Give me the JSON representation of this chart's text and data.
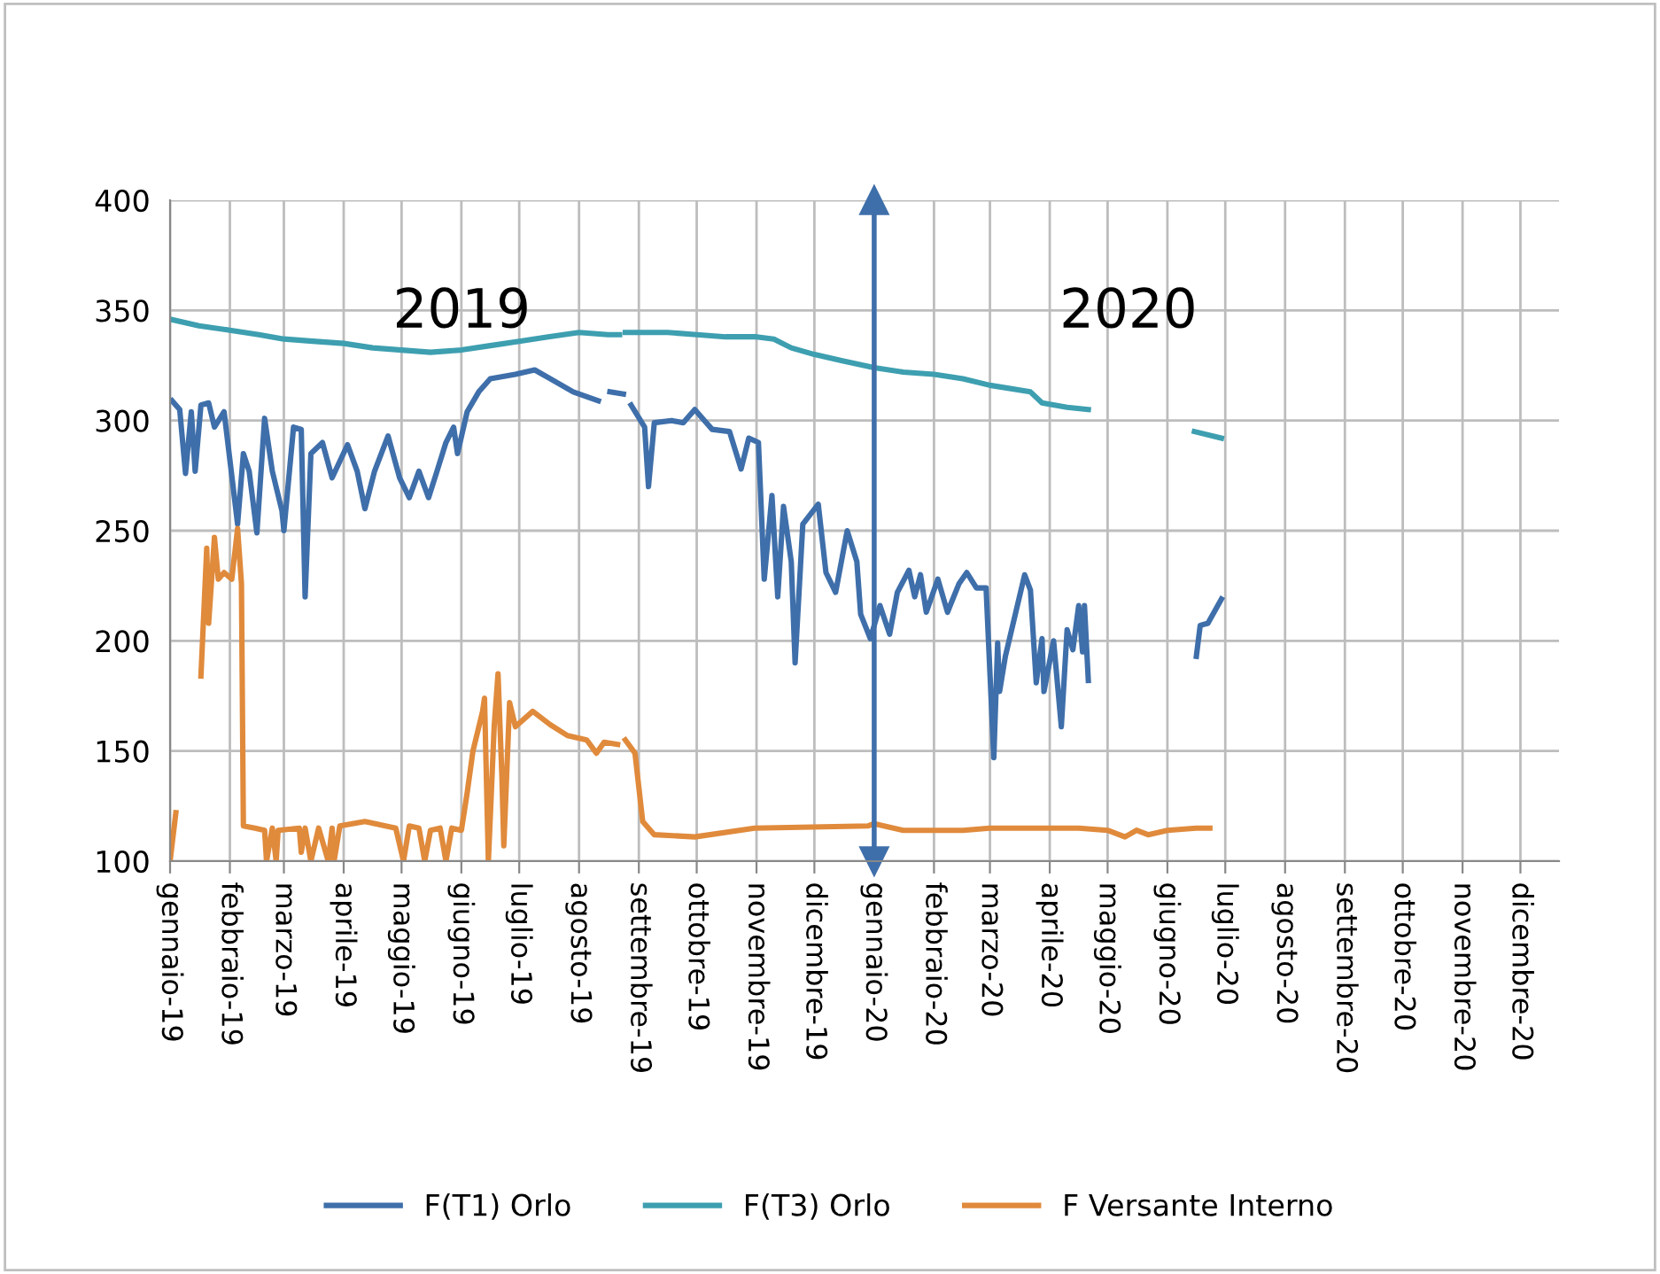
{
  "chart_data": {
    "type": "line",
    "xlim": [
      "2019-01-01",
      "2020-12-21"
    ],
    "xticks": [
      {
        "value": "2019-01-01",
        "label": "gennaio-19"
      },
      {
        "value": "2019-02-01",
        "label": "febbraio-19"
      },
      {
        "value": "2019-03-01",
        "label": "marzo-19"
      },
      {
        "value": "2019-04-01",
        "label": "aprile-19"
      },
      {
        "value": "2019-05-01",
        "label": "maggio-19"
      },
      {
        "value": "2019-06-01",
        "label": "giugno-19"
      },
      {
        "value": "2019-07-01",
        "label": "luglio-19"
      },
      {
        "value": "2019-08-01",
        "label": "agosto-19"
      },
      {
        "value": "2019-09-01",
        "label": "settembre-19"
      },
      {
        "value": "2019-10-01",
        "label": "ottobre-19"
      },
      {
        "value": "2019-11-01",
        "label": "novembre-19"
      },
      {
        "value": "2019-12-01",
        "label": "dicembre-19"
      },
      {
        "value": "2020-01-01",
        "label": "gennaio-20"
      },
      {
        "value": "2020-02-01",
        "label": "febbraio-20"
      },
      {
        "value": "2020-03-01",
        "label": "marzo-20"
      },
      {
        "value": "2020-04-01",
        "label": "aprile-20"
      },
      {
        "value": "2020-05-01",
        "label": "maggio-20"
      },
      {
        "value": "2020-06-01",
        "label": "giugno-20"
      },
      {
        "value": "2020-07-01",
        "label": "luglio-20"
      },
      {
        "value": "2020-08-01",
        "label": "agosto-20"
      },
      {
        "value": "2020-09-01",
        "label": "settembre-20"
      },
      {
        "value": "2020-10-01",
        "label": "ottobre-20"
      },
      {
        "value": "2020-11-01",
        "label": "novembre-20"
      },
      {
        "value": "2020-12-01",
        "label": "dicembre-20"
      }
    ],
    "ylim": [
      100,
      400
    ],
    "yticks": [
      100,
      150,
      200,
      250,
      300,
      350,
      400
    ],
    "grid": true,
    "legend": "bottom",
    "marker": "none",
    "line_style": "solid",
    "annotations": [
      "2019",
      "2020"
    ],
    "ref_lines": [
      {
        "axis": "x",
        "value": "2020-01-01",
        "label": null,
        "color": "#3f6faa"
      }
    ],
    "series": [
      {
        "name": "F(T1) Orlo",
        "color": "#3f6faa",
        "x": [
          "2019-01-02",
          "2019-01-06",
          "2019-01-09",
          "2019-01-12",
          "2019-01-14",
          "2019-01-17",
          "2019-01-21",
          "2019-01-24",
          "2019-01-29",
          "2019-02-05",
          "2019-02-08",
          "2019-02-11",
          "2019-02-15",
          "2019-02-19",
          "2019-02-23",
          "2019-02-28",
          "2019-03-01",
          "2019-03-06",
          "2019-03-10",
          "2019-03-12",
          "2019-03-15",
          "2019-03-21",
          "2019-03-26",
          "2019-04-03",
          "2019-04-08",
          "2019-04-12",
          "2019-04-17",
          "2019-04-24",
          "2019-04-30",
          "2019-05-05",
          "2019-05-10",
          "2019-05-15",
          "2019-05-19",
          "2019-05-24",
          "2019-05-28",
          "2019-05-30",
          "2019-06-04",
          "2019-06-10",
          "2019-06-16",
          "2019-06-29",
          "2019-07-09",
          "2019-07-17",
          "2019-07-29",
          "2019-08-11",
          "2019-08-14",
          "2019-08-17",
          "2019-08-24",
          "2019-08-26",
          "2019-08-28",
          "2019-09-04",
          "2019-09-06",
          "2019-09-09",
          "2019-09-18",
          "2019-09-24",
          "2019-09-30",
          "2019-10-05",
          "2019-10-09",
          "2019-10-18",
          "2019-10-24",
          "2019-10-28",
          "2019-11-02",
          "2019-11-05",
          "2019-11-09",
          "2019-11-12",
          "2019-11-15",
          "2019-11-19",
          "2019-11-21",
          "2019-11-25",
          "2019-12-03",
          "2019-12-07",
          "2019-12-12",
          "2019-12-18",
          "2019-12-23",
          "2019-12-25",
          "2019-12-30",
          "2020-01-04",
          "2020-01-09",
          "2020-01-13",
          "2020-01-19",
          "2020-01-22",
          "2020-01-25",
          "2020-01-28",
          "2020-02-03",
          "2020-02-08",
          "2020-02-14",
          "2020-02-18",
          "2020-02-23",
          "2020-02-28",
          "2020-03-03",
          "2020-03-05",
          "2020-03-06",
          "2020-03-09",
          "2020-03-19",
          "2020-03-22",
          "2020-03-25",
          "2020-03-28",
          "2020-03-29",
          "2020-04-03",
          "2020-04-07",
          "2020-04-10",
          "2020-04-13",
          "2020-04-16",
          "2020-04-18",
          "2020-04-19",
          "2020-04-21",
          "2020-05-16",
          "2020-06-16",
          "2020-06-18",
          "2020-06-22",
          "2020-06-29"
        ],
        "values": [
          309,
          305,
          276,
          304,
          277,
          307,
          308,
          297,
          304,
          253,
          285,
          277,
          249,
          301,
          277,
          259,
          250,
          297,
          296,
          220,
          285,
          290,
          274,
          289,
          277,
          260,
          277,
          293,
          274,
          265,
          277,
          265,
          276,
          290,
          297,
          285,
          304,
          313,
          319,
          321,
          323,
          319,
          313,
          309,
          null,
          313,
          312,
          null,
          307,
          297,
          270,
          299,
          300,
          299,
          305,
          300,
          296,
          295,
          278,
          292,
          290,
          228,
          266,
          220,
          261,
          236,
          190,
          253,
          262,
          231,
          222,
          250,
          236,
          212,
          201,
          216,
          203,
          222,
          232,
          220,
          230,
          213,
          228,
          213,
          226,
          231,
          224,
          224,
          147,
          199,
          177,
          193,
          230,
          223,
          181,
          201,
          177,
          200,
          161,
          205,
          196,
          216,
          195,
          216,
          182,
          null,
          193,
          207,
          208,
          219
        ]
      },
      {
        "name": "F(T3) Orlo",
        "color": "#3d9fb0",
        "x": [
          "2019-01-01",
          "2019-01-16",
          "2019-02-01",
          "2019-02-16",
          "2019-03-01",
          "2019-03-16",
          "2019-04-01",
          "2019-04-16",
          "2019-05-01",
          "2019-05-16",
          "2019-06-01",
          "2019-06-16",
          "2019-07-01",
          "2019-07-16",
          "2019-08-01",
          "2019-08-16",
          "2019-08-22",
          "2019-08-23",
          "2019-08-25",
          "2019-09-16",
          "2019-10-01",
          "2019-10-16",
          "2019-11-01",
          "2019-11-10",
          "2019-11-19",
          "2019-12-01",
          "2019-12-16",
          "2020-01-01",
          "2020-01-16",
          "2020-02-01",
          "2020-02-16",
          "2020-03-01",
          "2020-03-22",
          "2020-03-28",
          "2020-04-10",
          "2020-04-21",
          "2020-05-16",
          "2020-06-15",
          "2020-06-29"
        ],
        "values": [
          346,
          343,
          341,
          339,
          337,
          336,
          335,
          333,
          332,
          331,
          332,
          334,
          336,
          338,
          340,
          339,
          339,
          null,
          340,
          340,
          339,
          338,
          338,
          337,
          333,
          330,
          327,
          324,
          322,
          321,
          319,
          316,
          313,
          308,
          306,
          305,
          null,
          295,
          292
        ]
      },
      {
        "name": "F Versante Interno",
        "color": "#e08a3c",
        "x": [
          "2019-01-01",
          "2019-01-04",
          "2019-01-10",
          "2019-01-17",
          "2019-01-20",
          "2019-01-21",
          "2019-01-24",
          "2019-01-26",
          "2019-01-29",
          "2019-02-02",
          "2019-02-05",
          "2019-02-07",
          "2019-02-08",
          "2019-02-14",
          "2019-02-19",
          "2019-02-20",
          "2019-02-23",
          "2019-02-25",
          "2019-02-26",
          "2019-03-09",
          "2019-03-10",
          "2019-03-12",
          "2019-03-15",
          "2019-03-19",
          "2019-03-24",
          "2019-03-26",
          "2019-03-27",
          "2019-03-30",
          "2019-04-12",
          "2019-04-28",
          "2019-05-02",
          "2019-05-05",
          "2019-05-10",
          "2019-05-13",
          "2019-05-16",
          "2019-05-21",
          "2019-05-24",
          "2019-05-27",
          "2019-06-01",
          "2019-06-04",
          "2019-06-07",
          "2019-06-12",
          "2019-06-13",
          "2019-06-15",
          "2019-06-18",
          "2019-06-20",
          "2019-06-22",
          "2019-06-23",
          "2019-06-26",
          "2019-06-29",
          "2019-07-08",
          "2019-07-17",
          "2019-07-26",
          "2019-08-05",
          "2019-08-10",
          "2019-08-14",
          "2019-08-21",
          "2019-08-23",
          "2019-08-25",
          "2019-08-30",
          "2019-09-03",
          "2019-09-09",
          "2019-09-30",
          "2019-10-31",
          "2019-12-29",
          "2020-01-01",
          "2020-01-16",
          "2020-02-01",
          "2020-02-16",
          "2020-03-01",
          "2020-03-16",
          "2020-04-01",
          "2020-04-16",
          "2020-05-01",
          "2020-05-10",
          "2020-05-16",
          "2020-05-22",
          "2020-06-01",
          "2020-06-16",
          "2020-06-23"
        ],
        "values": [
          100,
          122,
          null,
          184,
          242,
          208,
          247,
          228,
          231,
          228,
          251,
          226,
          116,
          115,
          114,
          100,
          115,
          100,
          114,
          115,
          104,
          115,
          100,
          115,
          100,
          115,
          100,
          116,
          118,
          115,
          100,
          116,
          115,
          100,
          114,
          115,
          100,
          115,
          114,
          131,
          150,
          168,
          174,
          100,
          161,
          185,
          139,
          107,
          172,
          161,
          168,
          162,
          157,
          155,
          149,
          154,
          153,
          null,
          155,
          149,
          118,
          112,
          111,
          115,
          116,
          117,
          114,
          114,
          114,
          115,
          115,
          115,
          115,
          114,
          111,
          114,
          112,
          114,
          115,
          115
        ]
      }
    ]
  }
}
